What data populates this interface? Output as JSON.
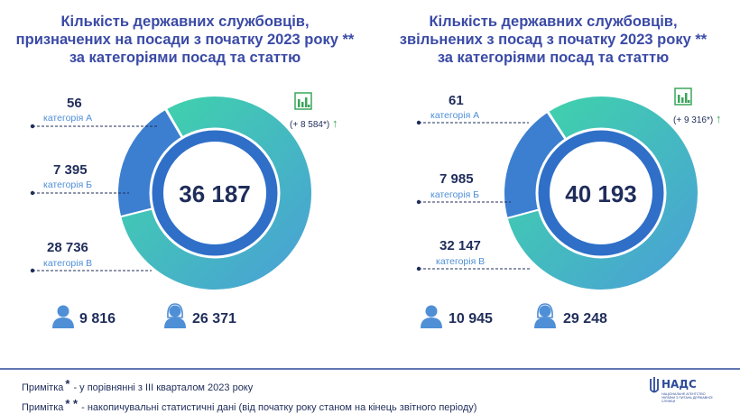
{
  "chart_data": [
    {
      "type": "pie",
      "title_lines": [
        "Кількість державних службовців,",
        "призначених на посади з початку 2023 року **",
        "за категоріями посад та статтю"
      ],
      "total": "36 187",
      "change": "(+ 8 584*)",
      "categories": [
        {
          "value_text": "56",
          "value": 56,
          "label": "категорія А",
          "color": "#4fb8dd"
        },
        {
          "value_text": "7 395",
          "value": 7395,
          "label": "категорія Б",
          "color": "#3c7fd0"
        },
        {
          "value_text": "28 736",
          "value": 28736,
          "label": "категорія В",
          "color": "#3ecfa8"
        }
      ],
      "gender": {
        "male": "9 816",
        "female": "26 371"
      }
    },
    {
      "type": "pie",
      "title_lines": [
        "Кількість державних службовців,",
        "звільнених з посад з початку 2023 року **",
        "за категоріями посад та статтю"
      ],
      "total": "40 193",
      "change": "(+ 9 316*)",
      "categories": [
        {
          "value_text": "61",
          "value": 61,
          "label": "категорія А",
          "color": "#4fb8dd"
        },
        {
          "value_text": "7 985",
          "value": 7985,
          "label": "категорія Б",
          "color": "#3c7fd0"
        },
        {
          "value_text": "32 147",
          "value": 32147,
          "label": "категорія В",
          "color": "#3ecfa8"
        }
      ],
      "gender": {
        "male": "10 945",
        "female": "29 248"
      }
    }
  ],
  "notes": [
    {
      "label": "Примітка",
      "mark": "*",
      "text": "- у порівнянні з ІІІ кварталом 2023 року"
    },
    {
      "label": "Примітка",
      "mark": "* *",
      "text": "- накопичувальні статистичні дані (від початку року станом на кінець звітного періоду)"
    }
  ],
  "logo": {
    "name": "НАДС",
    "sub": "НАЦІОНАЛЬНЕ АГЕНТСТВО УКРАЇНИ З ПИТАНЬ ДЕРЖАВНОЇ СЛУЖБИ"
  },
  "colors": {
    "title": "#3a4aa6",
    "dark_text": "#1f2d5a",
    "label_blue": "#4f8fd6",
    "ring_inner": "#2f6fc8",
    "accent_green": "#3aa65a"
  },
  "icons": [
    "bar-chart-icon",
    "arrow-up-icon",
    "male-person-icon",
    "female-person-icon",
    "trident-icon"
  ]
}
